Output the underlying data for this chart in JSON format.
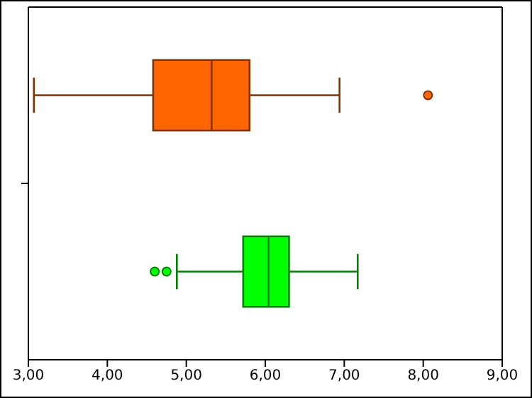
{
  "chart_data": {
    "type": "box",
    "orientation": "horizontal",
    "categories": [
      null,
      null
    ],
    "boxes": [
      {
        "low": 3.07,
        "q1": 4.58,
        "median": 5.32,
        "q3": 5.8,
        "high": 6.94,
        "outliers": [
          8.06
        ]
      },
      {
        "low": 4.88,
        "q1": 5.72,
        "median": 6.04,
        "q3": 6.3,
        "high": 7.17,
        "outliers": [
          4.6,
          4.75
        ]
      }
    ],
    "colors": [
      "#ff6600",
      "#00ff00"
    ],
    "xlim": [
      3,
      9
    ],
    "xticks": [
      {
        "value": 3,
        "label": "3,00"
      },
      {
        "value": 4,
        "label": "4,00"
      },
      {
        "value": 5,
        "label": "5,00"
      },
      {
        "value": 6,
        "label": "6,00"
      },
      {
        "value": 7,
        "label": "7,00"
      },
      {
        "value": 8,
        "label": "8,00"
      },
      {
        "value": 9,
        "label": "9,00"
      }
    ],
    "grid": false,
    "legend": false
  }
}
